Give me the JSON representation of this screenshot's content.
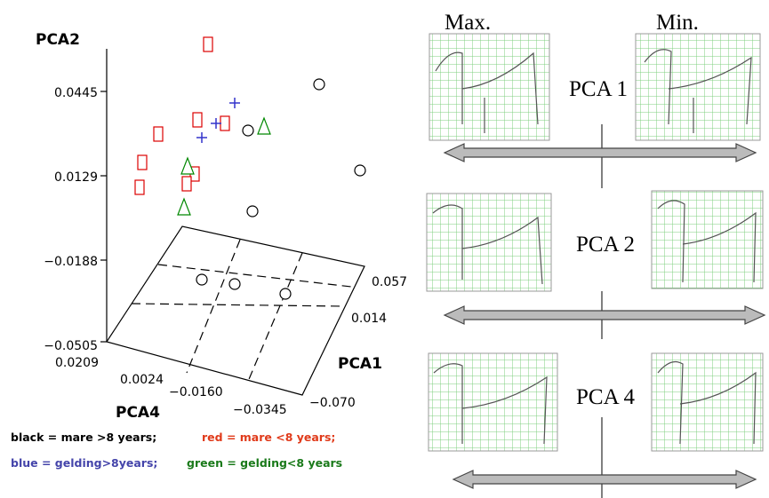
{
  "plot": {
    "y_axis_title": "PCA2",
    "x_axis_title": "PCA1",
    "z_axis_title": "PCA4",
    "y_ticks": [
      "0.0445",
      "0.0129",
      "−0.0188",
      "−0.0505"
    ],
    "pca4_ticks": [
      "0.0209",
      "0.0024",
      "−0.0160",
      "−0.0345"
    ],
    "pca1_ticks": [
      "0.057",
      "0.014",
      "−0.070"
    ]
  },
  "legend": [
    "black = mare >8 years;",
    "red = mare <8 years;",
    "blue = gelding>8years;",
    "green = gelding<8 years"
  ],
  "panels": {
    "max_label": "Max.",
    "min_label": "Min.",
    "rows": [
      "PCA 1",
      "PCA 2",
      "PCA 4"
    ]
  }
}
